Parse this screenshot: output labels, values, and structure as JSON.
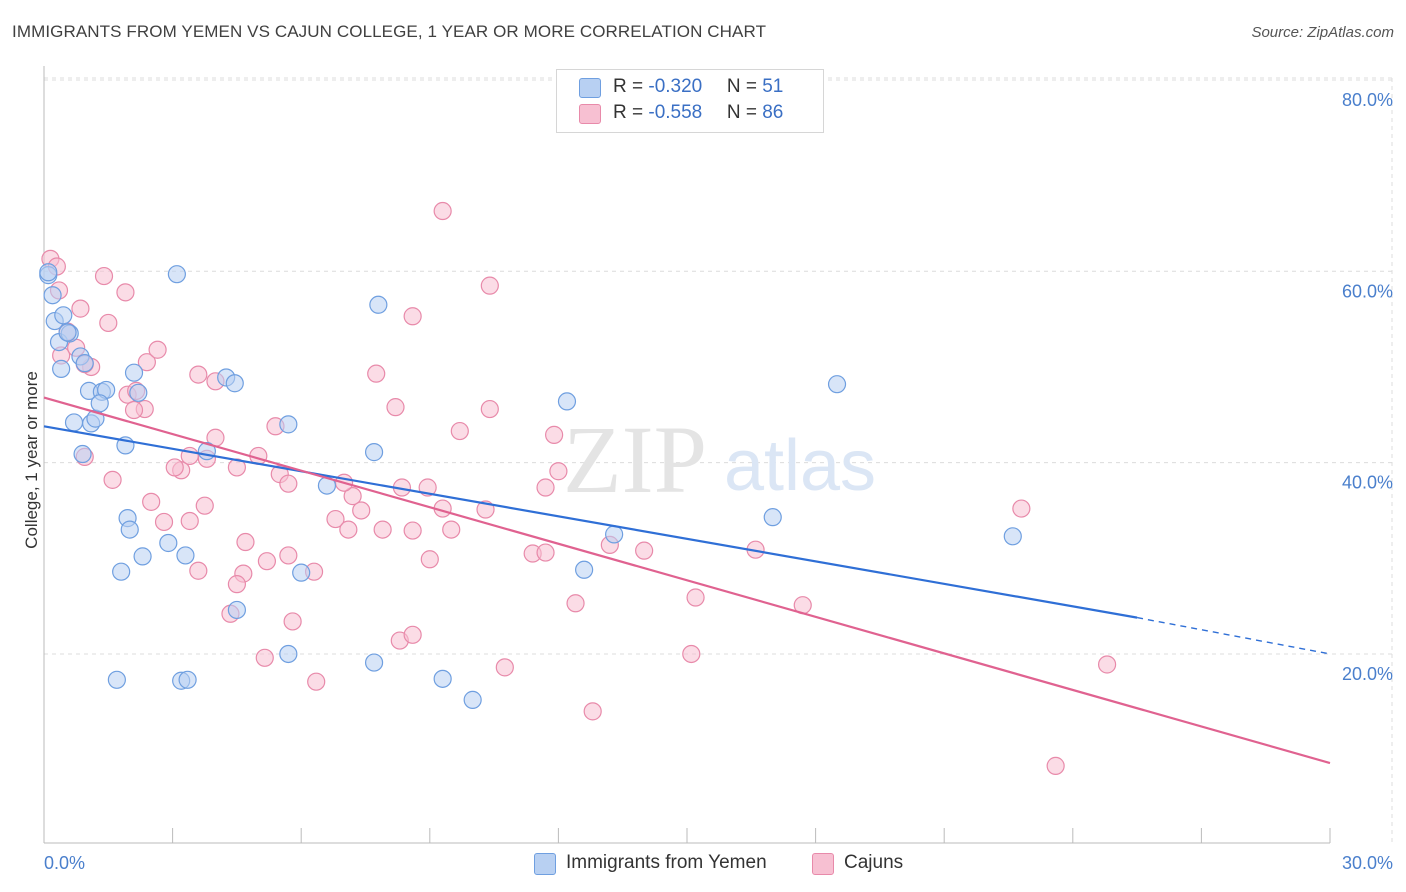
{
  "title": "IMMIGRANTS FROM YEMEN VS CAJUN COLLEGE, 1 YEAR OR MORE CORRELATION CHART",
  "source": "Source: ZipAtlas.com",
  "watermark": {
    "zip": "ZIP",
    "atlas": "atlas"
  },
  "colors": {
    "blue_fill": "#b8d0f2",
    "blue_stroke": "#6f9fe0",
    "blue_line": "#2f6fd6",
    "pink_fill": "#f7c0d2",
    "pink_stroke": "#e88aaa",
    "pink_line": "#e06290",
    "axis_text": "#4a7fcc",
    "grid": "#dcdcdc"
  },
  "stats": [
    {
      "r_label": "R = ",
      "r_value": "-0.320",
      "n_label": "N = ",
      "n_value": "51",
      "series": "blue"
    },
    {
      "r_label": "R = ",
      "r_value": "-0.558",
      "n_label": "N = ",
      "n_value": "86",
      "series": "pink"
    }
  ],
  "legend": [
    {
      "label": "Immigrants from Yemen",
      "series": "blue"
    },
    {
      "label": "Cajuns",
      "series": "pink"
    }
  ],
  "chart_data": {
    "type": "scatter",
    "title": "IMMIGRANTS FROM YEMEN VS CAJUN COLLEGE, 1 YEAR OR MORE CORRELATION CHART",
    "xlabel": "",
    "ylabel": "College, 1 year or more",
    "xlim": [
      0,
      30
    ],
    "ylim": [
      0,
      83
    ],
    "x_tick_labels": [
      {
        "value": 0,
        "label": "0.0%"
      },
      {
        "value": 30,
        "label": "30.0%"
      }
    ],
    "y_tick_labels": [
      {
        "value": 20,
        "label": "20.0%"
      },
      {
        "value": 40,
        "label": "40.0%"
      },
      {
        "value": 60,
        "label": "60.0%"
      },
      {
        "value": 80,
        "label": "80.0%"
      }
    ],
    "x_minor_ticks": [
      3,
      6,
      9,
      12,
      15,
      18,
      21,
      24,
      27,
      30
    ],
    "series": [
      {
        "name": "Immigrants from Yemen",
        "color": "blue",
        "points": [
          [
            0.1,
            59.6
          ],
          [
            0.2,
            57.5
          ],
          [
            0.25,
            54.8
          ],
          [
            0.35,
            52.6
          ],
          [
            0.45,
            55.4
          ],
          [
            0.6,
            53.5
          ],
          [
            0.4,
            49.8
          ],
          [
            0.85,
            51.1
          ],
          [
            0.95,
            50.4
          ],
          [
            1.05,
            47.5
          ],
          [
            1.35,
            47.4
          ],
          [
            1.45,
            47.6
          ],
          [
            2.2,
            47.3
          ],
          [
            0.7,
            44.2
          ],
          [
            1.1,
            44.1
          ],
          [
            1.2,
            44.6
          ],
          [
            1.3,
            46.2
          ],
          [
            2.1,
            49.4
          ],
          [
            4.25,
            48.9
          ],
          [
            4.45,
            48.3
          ],
          [
            0.9,
            40.9
          ],
          [
            1.9,
            41.8
          ],
          [
            3.8,
            41.2
          ],
          [
            5.7,
            44.0
          ],
          [
            3.1,
            59.7
          ],
          [
            7.8,
            56.5
          ],
          [
            7.7,
            41.1
          ],
          [
            6.6,
            37.6
          ],
          [
            12.2,
            46.4
          ],
          [
            18.5,
            48.2
          ],
          [
            1.95,
            34.2
          ],
          [
            2.3,
            30.2
          ],
          [
            2.9,
            31.6
          ],
          [
            3.3,
            30.3
          ],
          [
            1.8,
            28.6
          ],
          [
            4.5,
            24.6
          ],
          [
            6.0,
            28.5
          ],
          [
            12.6,
            28.8
          ],
          [
            13.3,
            32.5
          ],
          [
            17.0,
            34.3
          ],
          [
            22.6,
            32.3
          ],
          [
            1.7,
            17.3
          ],
          [
            3.2,
            17.2
          ],
          [
            3.35,
            17.3
          ],
          [
            5.7,
            20.0
          ],
          [
            7.7,
            19.1
          ],
          [
            9.3,
            17.4
          ],
          [
            10.0,
            15.2
          ],
          [
            0.1,
            59.9
          ],
          [
            0.55,
            53.6
          ],
          [
            2.0,
            33.0
          ]
        ]
      },
      {
        "name": "Cajuns",
        "color": "pink",
        "points": [
          [
            0.15,
            61.3
          ],
          [
            0.3,
            60.5
          ],
          [
            0.35,
            58.0
          ],
          [
            0.85,
            56.1
          ],
          [
            0.55,
            53.7
          ],
          [
            0.4,
            51.2
          ],
          [
            0.75,
            52.0
          ],
          [
            1.1,
            50.0
          ],
          [
            1.5,
            54.6
          ],
          [
            1.4,
            59.5
          ],
          [
            1.9,
            57.8
          ],
          [
            2.4,
            50.5
          ],
          [
            2.65,
            51.8
          ],
          [
            1.95,
            47.1
          ],
          [
            2.35,
            45.6
          ],
          [
            2.1,
            45.5
          ],
          [
            2.15,
            47.5
          ],
          [
            0.95,
            50.3
          ],
          [
            3.6,
            49.2
          ],
          [
            4.0,
            42.6
          ],
          [
            4.0,
            48.5
          ],
          [
            0.95,
            40.6
          ],
          [
            1.6,
            38.2
          ],
          [
            3.2,
            39.2
          ],
          [
            3.4,
            40.7
          ],
          [
            3.05,
            39.5
          ],
          [
            3.8,
            40.4
          ],
          [
            4.5,
            39.5
          ],
          [
            5.0,
            40.7
          ],
          [
            5.4,
            43.8
          ],
          [
            5.5,
            38.8
          ],
          [
            5.7,
            37.8
          ],
          [
            2.5,
            35.9
          ],
          [
            2.8,
            33.8
          ],
          [
            3.4,
            33.9
          ],
          [
            3.75,
            35.5
          ],
          [
            4.7,
            31.7
          ],
          [
            5.2,
            29.7
          ],
          [
            5.7,
            30.3
          ],
          [
            6.8,
            34.1
          ],
          [
            7.1,
            33.0
          ],
          [
            7.4,
            35.0
          ],
          [
            7.2,
            36.5
          ],
          [
            7.0,
            37.9
          ],
          [
            7.9,
            33.0
          ],
          [
            7.75,
            49.3
          ],
          [
            8.2,
            45.8
          ],
          [
            8.35,
            37.4
          ],
          [
            8.95,
            37.4
          ],
          [
            9.5,
            33.0
          ],
          [
            9.3,
            35.2
          ],
          [
            9.0,
            29.9
          ],
          [
            8.6,
            32.9
          ],
          [
            9.7,
            43.3
          ],
          [
            10.4,
            45.6
          ],
          [
            10.3,
            35.1
          ],
          [
            11.4,
            30.5
          ],
          [
            11.7,
            30.6
          ],
          [
            11.7,
            37.4
          ],
          [
            12.0,
            39.1
          ],
          [
            11.9,
            42.9
          ],
          [
            12.4,
            25.3
          ],
          [
            14.0,
            30.8
          ],
          [
            15.2,
            25.9
          ],
          [
            16.6,
            30.9
          ],
          [
            17.7,
            25.1
          ],
          [
            22.8,
            35.2
          ],
          [
            24.8,
            18.9
          ],
          [
            23.6,
            8.3
          ],
          [
            15.1,
            20.0
          ],
          [
            9.3,
            66.3
          ],
          [
            10.4,
            58.5
          ],
          [
            8.6,
            55.3
          ],
          [
            4.35,
            24.2
          ],
          [
            4.65,
            28.4
          ],
          [
            5.15,
            19.6
          ],
          [
            6.35,
            17.1
          ],
          [
            5.8,
            23.4
          ],
          [
            8.3,
            21.4
          ],
          [
            8.6,
            22.0
          ],
          [
            10.75,
            18.6
          ],
          [
            12.8,
            14.0
          ],
          [
            4.5,
            27.3
          ],
          [
            3.6,
            28.7
          ],
          [
            6.3,
            28.6
          ],
          [
            13.2,
            31.4
          ]
        ]
      }
    ],
    "trend_lines": [
      {
        "series": "Immigrants from Yemen",
        "x_start": 0,
        "y_start": 43.8,
        "x_end": 25.5,
        "y_end": 23.8,
        "x_dash_end": 30,
        "y_dash_end": 20.0
      },
      {
        "series": "Cajuns",
        "x_start": 0,
        "y_start": 46.8,
        "x_end": 30,
        "y_end": 8.6
      }
    ]
  }
}
